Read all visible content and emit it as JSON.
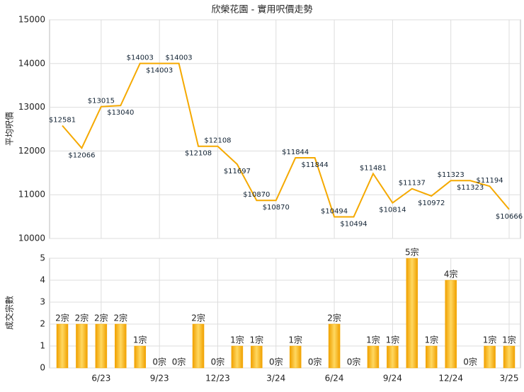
{
  "chart_data": [
    {
      "type": "line",
      "title": "欣榮花園 - 實用呎價走勢",
      "y_label": "平均呎價",
      "color": "#f5a900",
      "values": [
        12581,
        12066,
        13015,
        13040,
        14003,
        14003,
        14003,
        12108,
        12108,
        11697,
        10870,
        10870,
        11844,
        11844,
        10494,
        10494,
        11481,
        10814,
        11137,
        10972,
        11323,
        11323,
        11194,
        10666
      ],
      "value_labels": [
        "$12581",
        "$12066",
        "$13015",
        "$13040",
        "$14003",
        "$14003",
        "$14003",
        "$12108",
        "$12108",
        "$11697",
        "$10870",
        "$10870",
        "$11844",
        "$11844",
        "$10494",
        "$10494",
        "$11481",
        "$10814",
        "$11137",
        "$10972",
        "$11323",
        "$11323",
        "$11194",
        "$10666"
      ],
      "ylim": [
        10000,
        15000
      ],
      "yticks": [
        10000,
        11000,
        12000,
        13000,
        14000,
        15000
      ],
      "grid": true
    },
    {
      "type": "bar",
      "y_label": "成交宗數",
      "color": "#f5a900",
      "categories": [
        null,
        null,
        "6/23",
        null,
        null,
        "9/23",
        null,
        null,
        "12/23",
        null,
        null,
        "3/24",
        null,
        null,
        "6/24",
        null,
        null,
        "9/24",
        null,
        null,
        "12/24",
        null,
        null,
        "3/25"
      ],
      "values": [
        2,
        2,
        2,
        2,
        1,
        0,
        0,
        2,
        0,
        1,
        1,
        0,
        1,
        0,
        2,
        0,
        1,
        1,
        5,
        1,
        4,
        0,
        1,
        1
      ],
      "value_labels": [
        "2宗",
        "2宗",
        "2宗",
        "2宗",
        "1宗",
        "0宗",
        "0宗",
        "2宗",
        "0宗",
        "1宗",
        "1宗",
        "0宗",
        "1宗",
        "0宗",
        "2宗",
        "0宗",
        "1宗",
        "1宗",
        "5宗",
        "1宗",
        "4宗",
        "0宗",
        "1宗",
        "1宗"
      ],
      "ylim": [
        0,
        5
      ],
      "yticks": [
        0,
        1,
        2,
        3,
        4,
        5
      ],
      "grid": true
    }
  ]
}
